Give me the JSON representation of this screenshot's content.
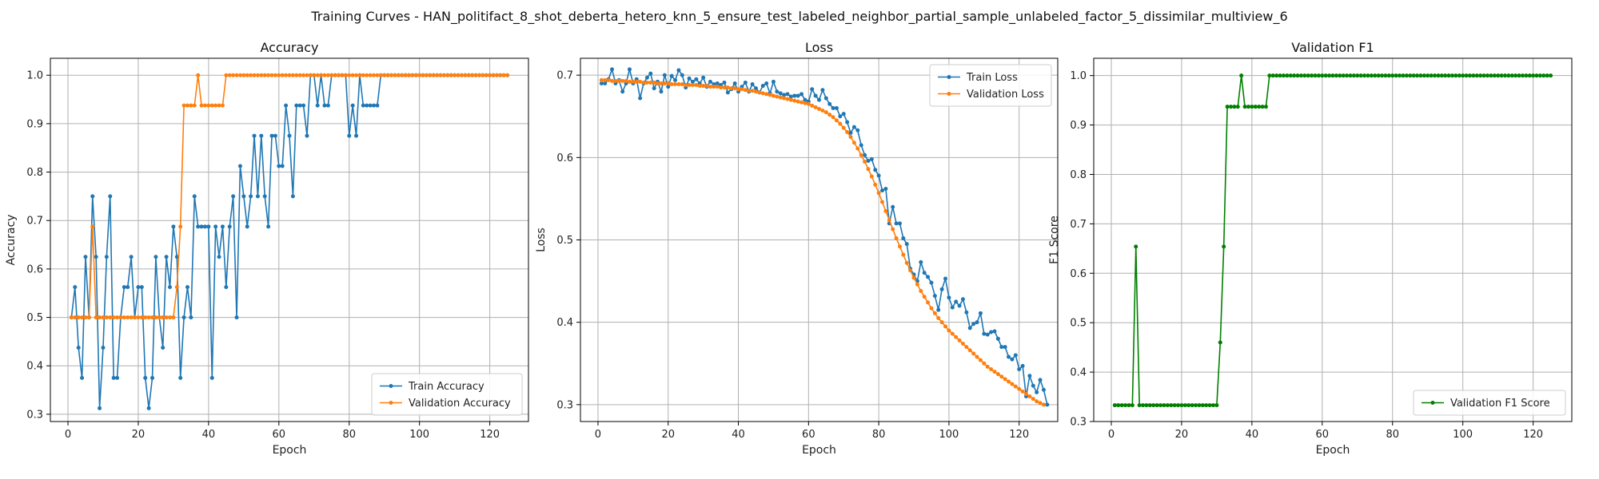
{
  "figure": {
    "suptitle": "Training Curves - HAN_politifact_8_shot_deberta_hetero_knn_5_ensure_test_labeled_neighbor_partial_sample_unlabeled_factor_5_dissimilar_multiview_6"
  },
  "colors": {
    "train": "#1f77b4",
    "validation": "#ff7f0e",
    "f1": "#008000",
    "grid": "#b0b0b0"
  },
  "chart_data": [
    {
      "type": "line",
      "title": "Accuracy",
      "xlabel": "Epoch",
      "ylabel": "Accuracy",
      "xlim": [
        -5,
        131
      ],
      "ylim": [
        0.285,
        1.035
      ],
      "xticks": [
        0,
        20,
        40,
        60,
        80,
        100,
        120
      ],
      "yticks": [
        0.3,
        0.4,
        0.5,
        0.6,
        0.7,
        0.8,
        0.9,
        1.0
      ],
      "yticklabels": [
        "0.3",
        "0.4",
        "0.5",
        "0.6",
        "0.7",
        "0.8",
        "0.9",
        "1.0"
      ],
      "grid": true,
      "legend": "lower-right",
      "series": [
        {
          "name": "Train Accuracy",
          "color": "#1f77b4",
          "x_start": 1,
          "values": [
            0.5,
            0.5625,
            0.4375,
            0.375,
            0.625,
            0.5,
            0.75,
            0.625,
            0.3125,
            0.4375,
            0.625,
            0.75,
            0.375,
            0.375,
            0.5,
            0.5625,
            0.5625,
            0.625,
            0.5,
            0.5625,
            0.5625,
            0.375,
            0.3125,
            0.375,
            0.625,
            0.5,
            0.4375,
            0.625,
            0.5625,
            0.6875,
            0.625,
            0.375,
            0.5,
            0.5625,
            0.5,
            0.75,
            0.6875,
            0.6875,
            0.6875,
            0.6875,
            0.375,
            0.6875,
            0.625,
            0.6875,
            0.5625,
            0.6875,
            0.75,
            0.5,
            0.8125,
            0.75,
            0.6875,
            0.75,
            0.875,
            0.75,
            0.875,
            0.75,
            0.6875,
            0.875,
            0.875,
            0.8125,
            0.8125,
            0.9375,
            0.875,
            0.75,
            0.9375,
            0.9375,
            0.9375,
            0.875,
            1.0,
            1.0,
            0.9375,
            1.0,
            0.9375,
            0.9375,
            1.0,
            1.0,
            1.0,
            1.0,
            1.0,
            0.875,
            0.9375,
            0.875,
            1.0,
            0.9375,
            0.9375,
            0.9375,
            0.9375,
            0.9375,
            1.0,
            1.0,
            1.0,
            1.0,
            1.0,
            1.0,
            1.0,
            1.0,
            1.0,
            1.0,
            1.0,
            1.0,
            1.0,
            1.0,
            1.0,
            1.0,
            1.0,
            1.0,
            1.0,
            1.0,
            1.0,
            1.0,
            1.0,
            1.0,
            1.0,
            1.0,
            1.0,
            1.0,
            1.0,
            1.0,
            1.0,
            1.0,
            1.0,
            1.0,
            1.0,
            1.0,
            1.0
          ]
        },
        {
          "name": "Validation Accuracy",
          "color": "#ff7f0e",
          "x_start": 1,
          "values": [
            0.5,
            0.5,
            0.5,
            0.5,
            0.5,
            0.5,
            0.6875,
            0.5,
            0.5,
            0.5,
            0.5,
            0.5,
            0.5,
            0.5,
            0.5,
            0.5,
            0.5,
            0.5,
            0.5,
            0.5,
            0.5,
            0.5,
            0.5,
            0.5,
            0.5,
            0.5,
            0.5,
            0.5,
            0.5,
            0.5,
            0.5625,
            0.6875,
            0.9375,
            0.9375,
            0.9375,
            0.9375,
            1.0,
            0.9375,
            0.9375,
            0.9375,
            0.9375,
            0.9375,
            0.9375,
            0.9375,
            1.0,
            1.0,
            1.0,
            1.0,
            1.0,
            1.0,
            1.0,
            1.0,
            1.0,
            1.0,
            1.0,
            1.0,
            1.0,
            1.0,
            1.0,
            1.0,
            1.0,
            1.0,
            1.0,
            1.0,
            1.0,
            1.0,
            1.0,
            1.0,
            1.0,
            1.0,
            1.0,
            1.0,
            1.0,
            1.0,
            1.0,
            1.0,
            1.0,
            1.0,
            1.0,
            1.0,
            1.0,
            1.0,
            1.0,
            1.0,
            1.0,
            1.0,
            1.0,
            1.0,
            1.0,
            1.0,
            1.0,
            1.0,
            1.0,
            1.0,
            1.0,
            1.0,
            1.0,
            1.0,
            1.0,
            1.0,
            1.0,
            1.0,
            1.0,
            1.0,
            1.0,
            1.0,
            1.0,
            1.0,
            1.0,
            1.0,
            1.0,
            1.0,
            1.0,
            1.0,
            1.0,
            1.0,
            1.0,
            1.0,
            1.0,
            1.0,
            1.0,
            1.0,
            1.0,
            1.0,
            1.0
          ]
        }
      ]
    },
    {
      "type": "line",
      "title": "Loss",
      "xlabel": "Epoch",
      "ylabel": "Loss",
      "xlim": [
        -5,
        131
      ],
      "ylim": [
        0.2795,
        0.7205
      ],
      "xticks": [
        0,
        20,
        40,
        60,
        80,
        100,
        120
      ],
      "yticks": [
        0.3,
        0.4,
        0.5,
        0.6,
        0.7
      ],
      "yticklabels": [
        "0.3",
        "0.4",
        "0.5",
        "0.6",
        "0.7"
      ],
      "grid": true,
      "legend": "upper-right",
      "series": [
        {
          "name": "Train Loss",
          "color": "#1f77b4",
          "x_start": 1,
          "values": [
            0.69,
            0.69,
            0.695,
            0.707,
            0.69,
            0.694,
            0.68,
            0.69,
            0.707,
            0.69,
            0.695,
            0.672,
            0.69,
            0.697,
            0.702,
            0.684,
            0.692,
            0.68,
            0.7,
            0.686,
            0.699,
            0.694,
            0.706,
            0.7,
            0.685,
            0.696,
            0.692,
            0.695,
            0.69,
            0.697,
            0.686,
            0.692,
            0.689,
            0.69,
            0.688,
            0.691,
            0.679,
            0.683,
            0.69,
            0.68,
            0.686,
            0.691,
            0.68,
            0.689,
            0.684,
            0.679,
            0.687,
            0.69,
            0.678,
            0.692,
            0.68,
            0.678,
            0.676,
            0.677,
            0.674,
            0.675,
            0.675,
            0.677,
            0.67,
            0.668,
            0.683,
            0.675,
            0.67,
            0.682,
            0.672,
            0.665,
            0.66,
            0.66,
            0.65,
            0.653,
            0.643,
            0.63,
            0.637,
            0.633,
            0.615,
            0.603,
            0.596,
            0.598,
            0.585,
            0.578,
            0.56,
            0.562,
            0.52,
            0.54,
            0.52,
            0.52,
            0.502,
            0.495,
            0.465,
            0.458,
            0.45,
            0.473,
            0.46,
            0.455,
            0.448,
            0.432,
            0.415,
            0.44,
            0.453,
            0.43,
            0.418,
            0.425,
            0.42,
            0.428,
            0.412,
            0.393,
            0.398,
            0.4,
            0.411,
            0.386,
            0.385,
            0.388,
            0.389,
            0.38,
            0.37,
            0.37,
            0.358,
            0.355,
            0.36,
            0.343,
            0.347,
            0.31,
            0.335,
            0.323,
            0.315,
            0.33,
            0.318,
            0.3
          ]
        },
        {
          "name": "Validation Loss",
          "color": "#ff7f0e",
          "x_start": 1,
          "values": [
            0.694,
            0.694,
            0.694,
            0.693,
            0.693,
            0.693,
            0.693,
            0.693,
            0.692,
            0.692,
            0.692,
            0.692,
            0.691,
            0.691,
            0.691,
            0.691,
            0.69,
            0.69,
            0.69,
            0.69,
            0.689,
            0.689,
            0.689,
            0.689,
            0.688,
            0.688,
            0.688,
            0.688,
            0.687,
            0.687,
            0.687,
            0.686,
            0.686,
            0.686,
            0.685,
            0.685,
            0.685,
            0.684,
            0.684,
            0.683,
            0.683,
            0.682,
            0.681,
            0.681,
            0.68,
            0.679,
            0.678,
            0.677,
            0.676,
            0.675,
            0.674,
            0.673,
            0.672,
            0.671,
            0.67,
            0.669,
            0.668,
            0.667,
            0.666,
            0.665,
            0.663,
            0.661,
            0.659,
            0.657,
            0.655,
            0.652,
            0.649,
            0.645,
            0.641,
            0.636,
            0.631,
            0.625,
            0.618,
            0.611,
            0.603,
            0.595,
            0.586,
            0.577,
            0.567,
            0.557,
            0.546,
            0.535,
            0.524,
            0.513,
            0.502,
            0.492,
            0.482,
            0.472,
            0.463,
            0.454,
            0.446,
            0.438,
            0.431,
            0.424,
            0.417,
            0.411,
            0.405,
            0.4,
            0.395,
            0.39,
            0.386,
            0.382,
            0.378,
            0.374,
            0.37,
            0.366,
            0.362,
            0.358,
            0.354,
            0.35,
            0.346,
            0.343,
            0.34,
            0.337,
            0.334,
            0.331,
            0.328,
            0.325,
            0.322,
            0.319,
            0.316,
            0.313,
            0.31,
            0.307,
            0.304,
            0.302,
            0.3
          ]
        }
      ]
    },
    {
      "type": "line",
      "title": "Validation F1",
      "xlabel": "Epoch",
      "ylabel": "F1 Score",
      "xlim": [
        -5,
        131
      ],
      "ylim": [
        0.3,
        1.035
      ],
      "xticks": [
        0,
        20,
        40,
        60,
        80,
        100,
        120
      ],
      "yticks": [
        0.3,
        0.4,
        0.5,
        0.6,
        0.7,
        0.8,
        0.9,
        1.0
      ],
      "yticklabels": [
        "0.3",
        "0.4",
        "0.5",
        "0.6",
        "0.7",
        "0.8",
        "0.9",
        "1.0"
      ],
      "grid": true,
      "legend": "lower-right",
      "series": [
        {
          "name": "Validation F1 Score",
          "color": "#008000",
          "x_start": 1,
          "values": [
            0.333,
            0.333,
            0.333,
            0.333,
            0.333,
            0.333,
            0.654,
            0.333,
            0.333,
            0.333,
            0.333,
            0.333,
            0.333,
            0.333,
            0.333,
            0.333,
            0.333,
            0.333,
            0.333,
            0.333,
            0.333,
            0.333,
            0.333,
            0.333,
            0.333,
            0.333,
            0.333,
            0.333,
            0.333,
            0.333,
            0.46,
            0.654,
            0.937,
            0.937,
            0.937,
            0.937,
            1.0,
            0.937,
            0.937,
            0.937,
            0.937,
            0.937,
            0.937,
            0.937,
            1.0,
            1.0,
            1.0,
            1.0,
            1.0,
            1.0,
            1.0,
            1.0,
            1.0,
            1.0,
            1.0,
            1.0,
            1.0,
            1.0,
            1.0,
            1.0,
            1.0,
            1.0,
            1.0,
            1.0,
            1.0,
            1.0,
            1.0,
            1.0,
            1.0,
            1.0,
            1.0,
            1.0,
            1.0,
            1.0,
            1.0,
            1.0,
            1.0,
            1.0,
            1.0,
            1.0,
            1.0,
            1.0,
            1.0,
            1.0,
            1.0,
            1.0,
            1.0,
            1.0,
            1.0,
            1.0,
            1.0,
            1.0,
            1.0,
            1.0,
            1.0,
            1.0,
            1.0,
            1.0,
            1.0,
            1.0,
            1.0,
            1.0,
            1.0,
            1.0,
            1.0,
            1.0,
            1.0,
            1.0,
            1.0,
            1.0,
            1.0,
            1.0,
            1.0,
            1.0,
            1.0,
            1.0,
            1.0,
            1.0,
            1.0,
            1.0,
            1.0,
            1.0,
            1.0,
            1.0,
            1.0
          ]
        }
      ]
    }
  ]
}
